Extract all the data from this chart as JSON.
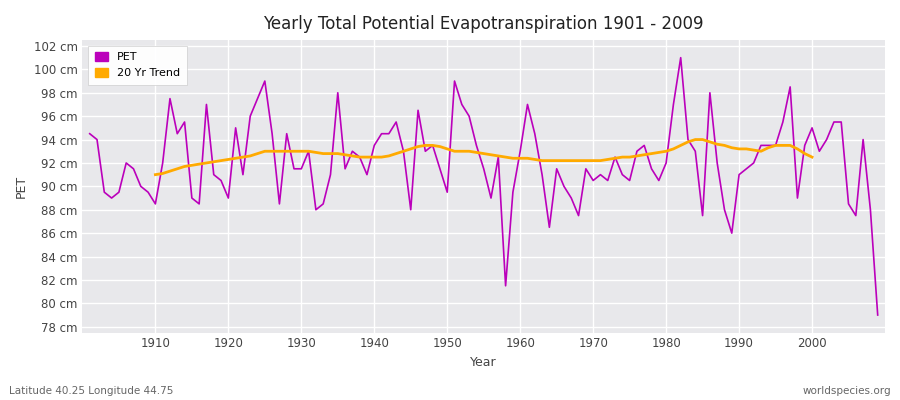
{
  "title": "Yearly Total Potential Evapotranspiration 1901 - 2009",
  "ylabel": "PET",
  "xlabel": "Year",
  "subtitle_left": "Latitude 40.25 Longitude 44.75",
  "subtitle_right": "worldspecies.org",
  "pet_color": "#bb00bb",
  "trend_color": "#ffaa00",
  "bg_color": "#e8e8eb",
  "fig_color": "#ffffff",
  "ylim": [
    77.5,
    102.5
  ],
  "yticks": [
    78,
    80,
    82,
    84,
    86,
    88,
    90,
    92,
    94,
    96,
    98,
    100,
    102
  ],
  "xlim": [
    1900,
    2010
  ],
  "xticks": [
    1910,
    1920,
    1930,
    1940,
    1950,
    1960,
    1970,
    1980,
    1990,
    2000
  ],
  "years": [
    1901,
    1902,
    1903,
    1904,
    1905,
    1906,
    1907,
    1908,
    1909,
    1910,
    1911,
    1912,
    1913,
    1914,
    1915,
    1916,
    1917,
    1918,
    1919,
    1920,
    1921,
    1922,
    1923,
    1924,
    1925,
    1926,
    1927,
    1928,
    1929,
    1930,
    1931,
    1932,
    1933,
    1934,
    1935,
    1936,
    1937,
    1938,
    1939,
    1940,
    1941,
    1942,
    1943,
    1944,
    1945,
    1946,
    1947,
    1948,
    1949,
    1950,
    1951,
    1952,
    1953,
    1954,
    1955,
    1956,
    1957,
    1958,
    1959,
    1960,
    1961,
    1962,
    1963,
    1964,
    1965,
    1966,
    1967,
    1968,
    1969,
    1970,
    1971,
    1972,
    1973,
    1974,
    1975,
    1976,
    1977,
    1978,
    1979,
    1980,
    1981,
    1982,
    1983,
    1984,
    1985,
    1986,
    1987,
    1988,
    1989,
    1990,
    1991,
    1992,
    1993,
    1994,
    1995,
    1996,
    1997,
    1998,
    1999,
    2000,
    2001,
    2002,
    2003,
    2004,
    2005,
    2006,
    2007,
    2008,
    2009
  ],
  "pet_values": [
    94.5,
    94.0,
    89.5,
    89.0,
    89.5,
    92.0,
    91.5,
    90.0,
    89.5,
    88.5,
    92.0,
    97.5,
    94.5,
    95.5,
    89.0,
    88.5,
    97.0,
    91.0,
    90.5,
    89.0,
    95.0,
    91.0,
    96.0,
    97.5,
    99.0,
    94.5,
    88.5,
    94.5,
    91.5,
    91.5,
    93.0,
    88.0,
    88.5,
    91.0,
    98.0,
    91.5,
    93.0,
    92.5,
    91.0,
    93.5,
    94.5,
    94.5,
    95.5,
    93.0,
    88.0,
    96.5,
    93.0,
    93.5,
    91.5,
    89.5,
    99.0,
    97.0,
    96.0,
    93.5,
    91.5,
    89.0,
    92.5,
    81.5,
    89.5,
    93.0,
    97.0,
    94.5,
    91.0,
    86.5,
    91.5,
    90.0,
    89.0,
    87.5,
    91.5,
    90.5,
    91.0,
    90.5,
    92.5,
    91.0,
    90.5,
    93.0,
    93.5,
    91.5,
    90.5,
    92.0,
    97.0,
    101.0,
    94.0,
    93.0,
    87.5,
    98.0,
    92.0,
    88.0,
    86.0,
    91.0,
    91.5,
    92.0,
    93.5,
    93.5,
    93.5,
    95.5,
    98.5,
    89.0,
    93.5,
    95.0,
    93.0,
    94.0,
    95.5,
    95.5,
    88.5,
    87.5,
    94.0,
    88.0,
    79.0
  ],
  "trend_values": [
    null,
    null,
    null,
    null,
    null,
    null,
    null,
    null,
    null,
    91.0,
    91.1,
    91.3,
    91.5,
    91.7,
    91.8,
    91.9,
    92.0,
    92.1,
    92.2,
    92.3,
    92.4,
    92.5,
    92.6,
    92.8,
    93.0,
    93.0,
    93.0,
    93.0,
    93.0,
    93.0,
    93.0,
    92.9,
    92.8,
    92.8,
    92.8,
    92.7,
    92.6,
    92.5,
    92.5,
    92.5,
    92.5,
    92.6,
    92.8,
    93.0,
    93.2,
    93.4,
    93.5,
    93.5,
    93.4,
    93.2,
    93.0,
    93.0,
    93.0,
    92.9,
    92.8,
    92.7,
    92.6,
    92.5,
    92.4,
    92.4,
    92.4,
    92.3,
    92.2,
    92.2,
    92.2,
    92.2,
    92.2,
    92.2,
    92.2,
    92.2,
    92.2,
    92.3,
    92.4,
    92.5,
    92.5,
    92.6,
    92.7,
    92.8,
    92.9,
    93.0,
    93.2,
    93.5,
    93.8,
    94.0,
    94.0,
    93.8,
    93.6,
    93.5,
    93.3,
    93.2,
    93.2,
    93.1,
    93.0,
    93.3,
    93.5,
    93.5,
    93.5,
    93.2,
    92.8,
    92.5,
    null,
    null,
    null,
    null,
    null,
    null,
    null,
    null,
    null
  ]
}
